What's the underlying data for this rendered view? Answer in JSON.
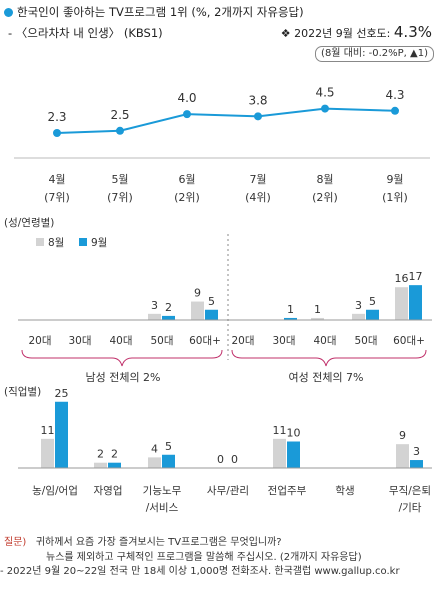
{
  "header": {
    "title": "한국인이 좋아하는 TV프로그램 1위 (%, 2개까지 자유응답)",
    "subtitle": "- 〈으라차차 내 인생〉 (KBS1)",
    "preference_label": "❖ 2022년 9월 선호도:",
    "preference_value": "4.3%",
    "change": "(8월 대비: -0.2%P, ▲1)"
  },
  "colors": {
    "accent": "#1a9ad8",
    "prev": "#d3d3d3",
    "divider_pink": "#c0306a",
    "question": "#c0392b"
  },
  "chart_data": [
    {
      "type": "line",
      "categories": [
        "4월",
        "5월",
        "6월",
        "7월",
        "8월",
        "9월"
      ],
      "ranks": [
        "(7위)",
        "(7위)",
        "(2위)",
        "(4위)",
        "(2위)",
        "(1위)"
      ],
      "values": [
        2.3,
        2.5,
        4.0,
        3.8,
        4.5,
        4.3
      ],
      "labels": [
        "2.3",
        "2.5",
        "4.0",
        "3.8",
        "4.5",
        "4.3"
      ]
    },
    {
      "type": "bar",
      "title": "(성/연령별)",
      "legend": [
        "8월",
        "9월"
      ],
      "groups": [
        {
          "name": "남성 전체의 2%",
          "categories": [
            "20대",
            "30대",
            "40대",
            "50대",
            "60대+"
          ],
          "series": [
            {
              "name": "8월",
              "values": [
                0,
                0,
                0,
                3,
                9
              ],
              "labels": [
                "",
                "",
                "",
                "3",
                "9"
              ]
            },
            {
              "name": "9월",
              "values": [
                0,
                0,
                0,
                2,
                5
              ],
              "labels": [
                "",
                "",
                "",
                "2",
                "5"
              ]
            }
          ]
        },
        {
          "name": "여성 전체의 7%",
          "categories": [
            "20대",
            "30대",
            "40대",
            "50대",
            "60대+"
          ],
          "series": [
            {
              "name": "8월",
              "values": [
                0,
                0,
                1,
                3,
                16
              ],
              "labels": [
                "",
                "",
                "1",
                "3",
                "16"
              ]
            },
            {
              "name": "9월",
              "values": [
                0,
                1,
                0,
                5,
                17
              ],
              "labels": [
                "",
                "1",
                "",
                "5",
                "17"
              ]
            }
          ]
        }
      ]
    },
    {
      "type": "bar",
      "title": "(직업별)",
      "categories": [
        "농/임/어업",
        "자영업",
        "기능노무\n/서비스",
        "사무/관리",
        "전업주부",
        "학생",
        "무직/은퇴\n/기타"
      ],
      "series": [
        {
          "name": "8월",
          "values": [
            11,
            2,
            4,
            0,
            11,
            0,
            9
          ],
          "labels": [
            "11",
            "2",
            "4",
            "0",
            "11",
            "",
            "9"
          ]
        },
        {
          "name": "9월",
          "values": [
            25,
            2,
            5,
            0,
            10,
            0,
            3
          ],
          "labels": [
            "25",
            "2",
            "5",
            "0",
            "10",
            "",
            "3"
          ]
        }
      ]
    }
  ],
  "footer": {
    "q_label": "질문)",
    "q_line1": "귀하께서 요즘 가장 즐겨보시는 TV프로그램은 무엇입니까?",
    "q_line2": "뉴스를 제외하고 구체적인 프로그램을 말씀해 주십시오. (2개까지 자유응답)",
    "source": "- 2022년 9월 20~22일 전국 만 18세 이상 1,000명 전화조사. 한국갤럽 www.gallup.co.kr"
  }
}
